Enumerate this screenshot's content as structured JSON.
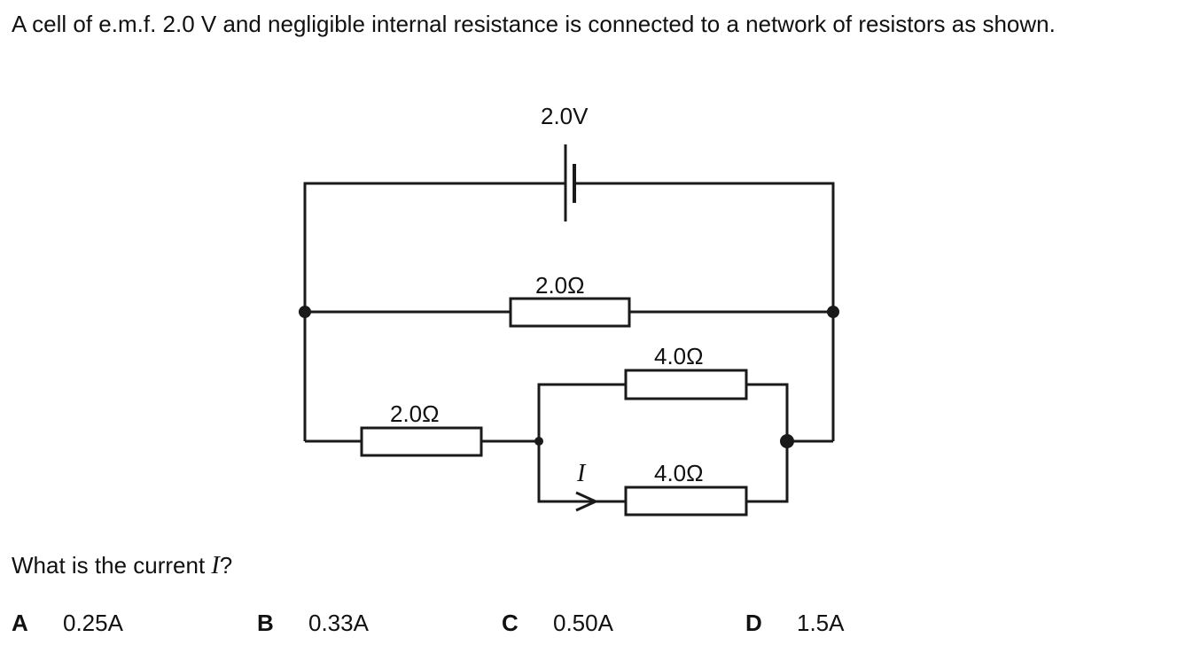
{
  "intro_text": "A cell of e.m.f. 2.0 V and negligible internal resistance is connected to a network of resistors as shown.",
  "circuit": {
    "cell_label": "2.0V",
    "resistor_top_label": "2.0Ω",
    "resistor_left_label": "2.0Ω",
    "resistor_parallel_upper_label": "4.0Ω",
    "resistor_parallel_lower_label": "4.0Ω",
    "current_label": "I"
  },
  "question": {
    "prefix": "What is the current ",
    "variable": "I",
    "suffix": "?"
  },
  "options": [
    {
      "letter": "A",
      "value": "0.25A"
    },
    {
      "letter": "B",
      "value": "0.33A"
    },
    {
      "letter": "C",
      "value": "0.50A"
    },
    {
      "letter": "D",
      "value": "1.5A"
    }
  ]
}
